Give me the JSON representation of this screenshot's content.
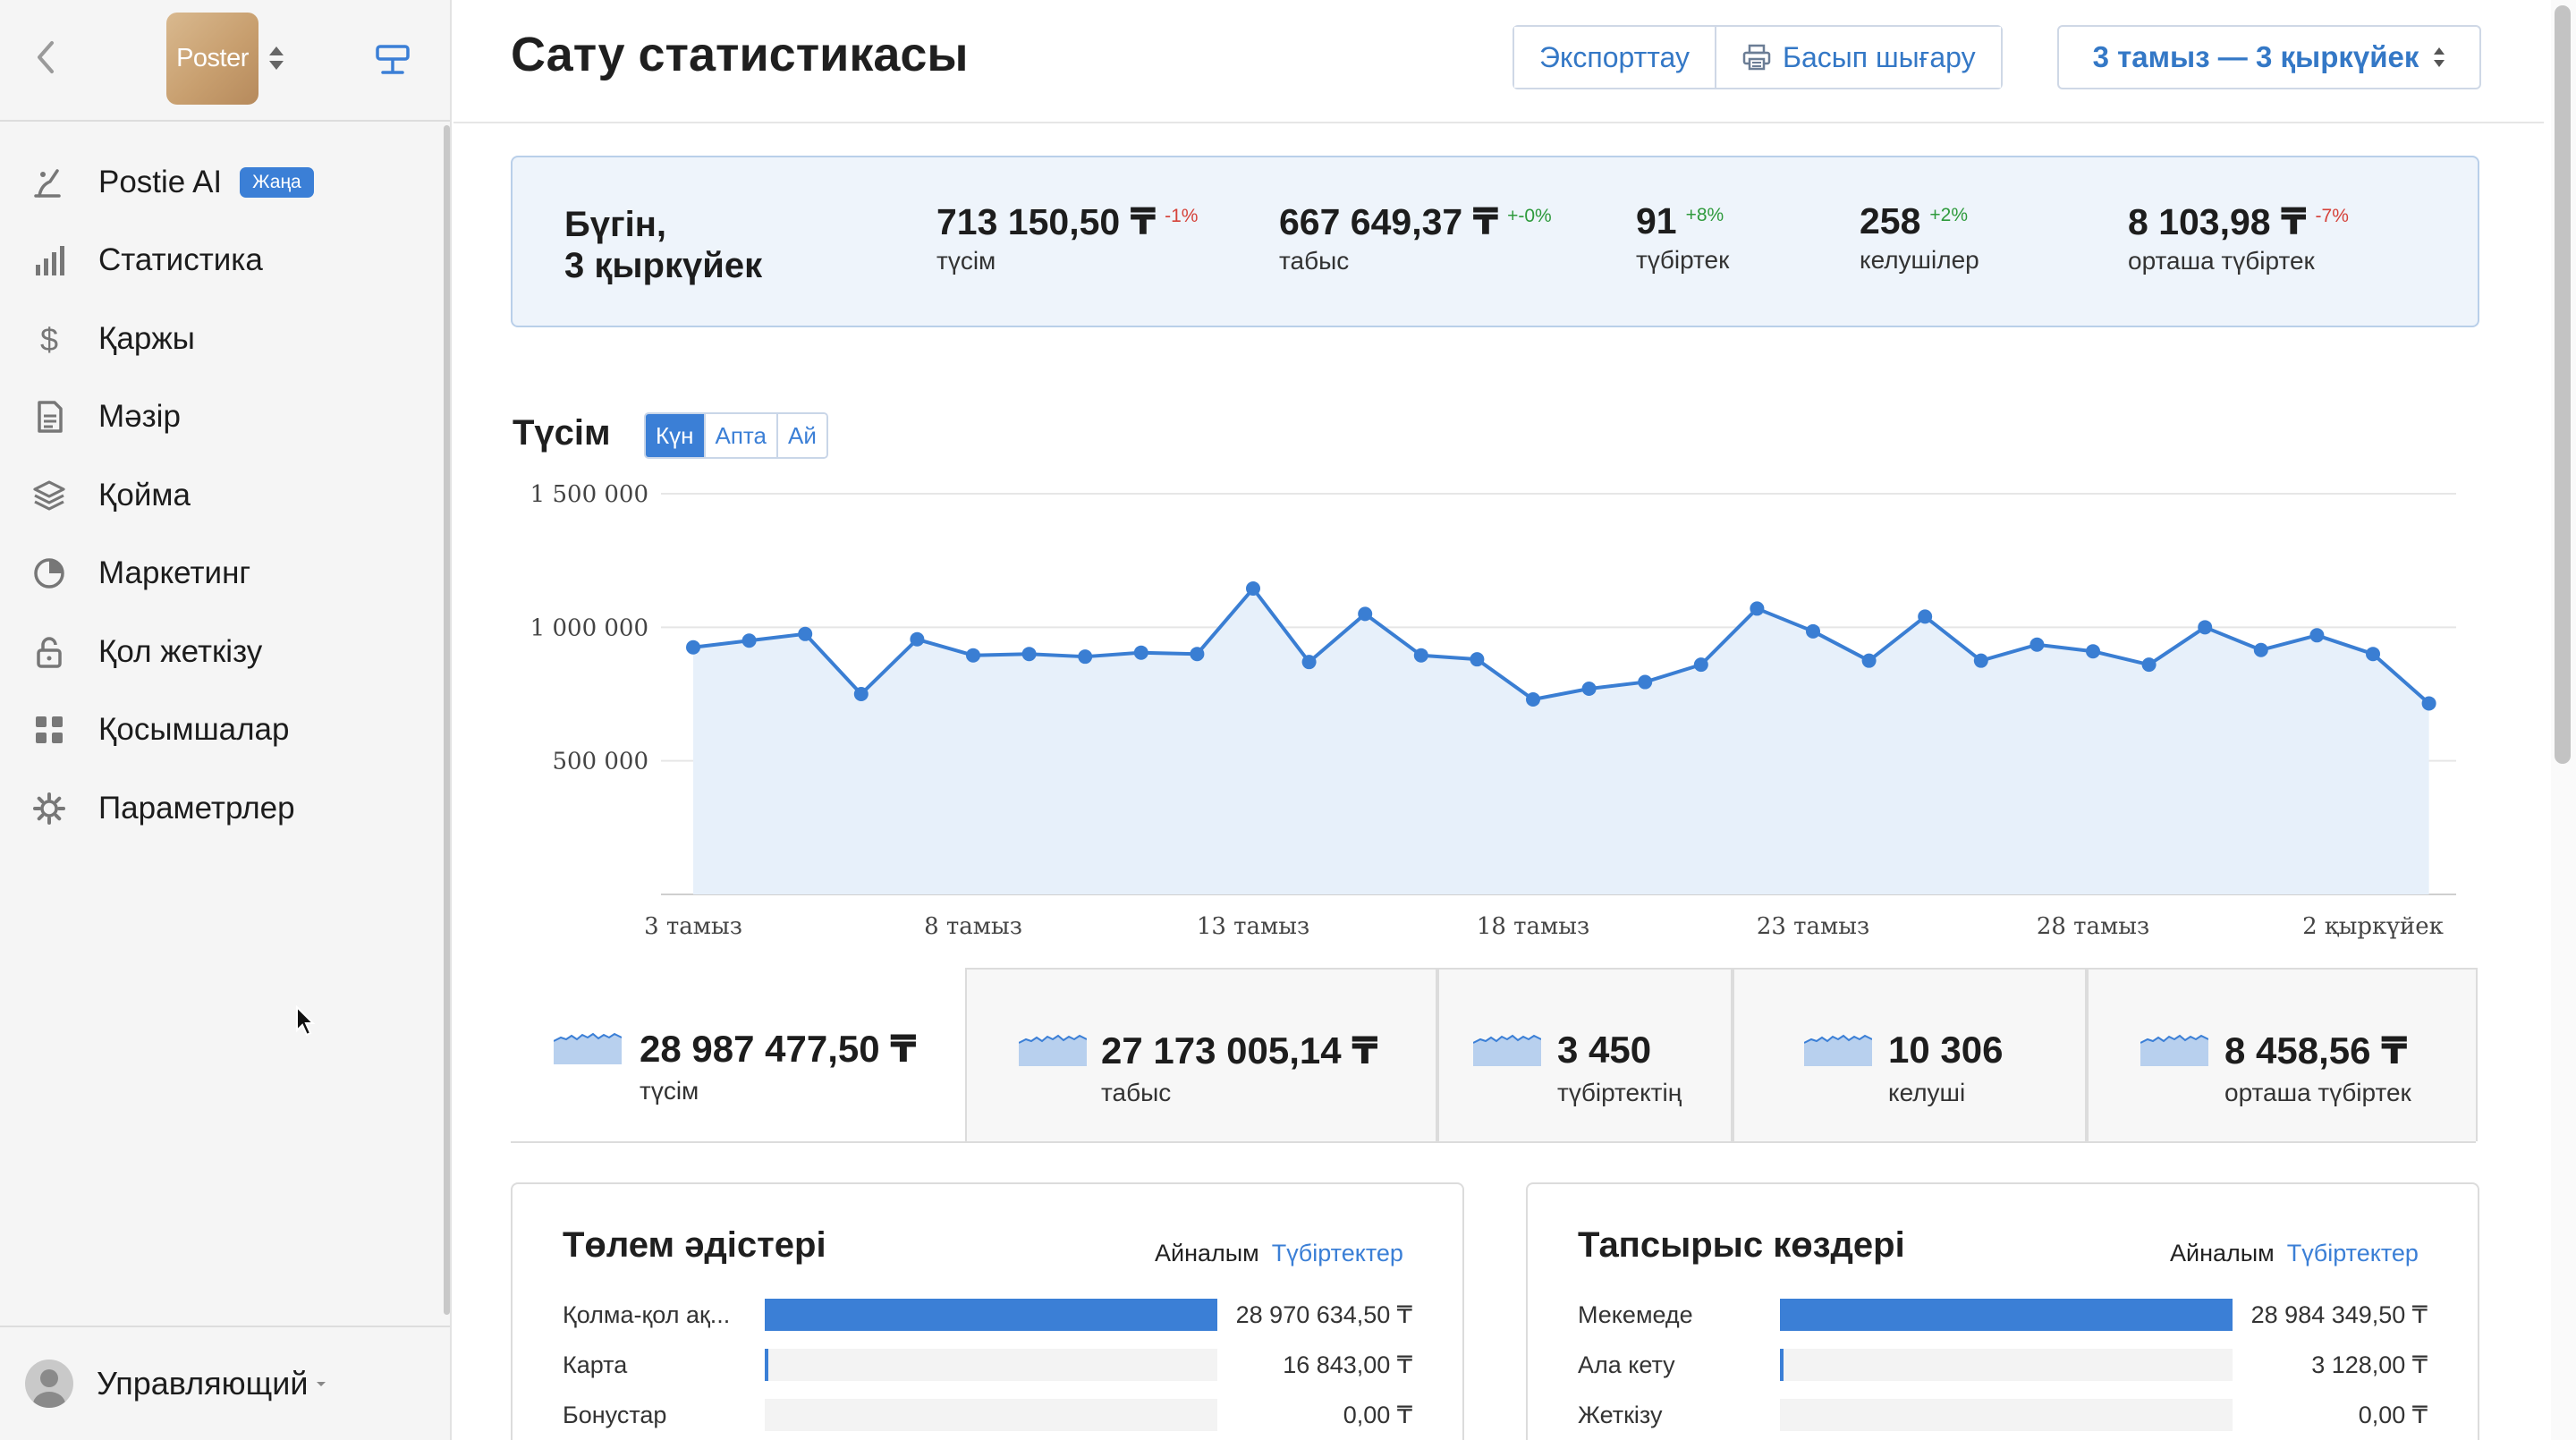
{
  "sidebar": {
    "logo_text": "Poster",
    "menu": [
      {
        "label": "Postie AI",
        "badge": "Жаңа",
        "icon": "ai-icon"
      },
      {
        "label": "Статистика",
        "icon": "statistics-icon"
      },
      {
        "label": "Қаржы",
        "icon": "finance-icon"
      },
      {
        "label": "Мәзір",
        "icon": "menu-icon"
      },
      {
        "label": "Қойма",
        "icon": "warehouse-icon"
      },
      {
        "label": "Маркетинг",
        "icon": "marketing-icon"
      },
      {
        "label": "Қол жеткізу",
        "icon": "access-icon"
      },
      {
        "label": "Қосымшалар",
        "icon": "apps-icon"
      },
      {
        "label": "Параметрлер",
        "icon": "settings-icon"
      }
    ],
    "user": "Управляющий"
  },
  "header": {
    "title": "Сату статистикасы",
    "export_label": "Экспорттау",
    "print_label": "Басып шығару",
    "date_range": "3 тамыз — 3 қыркүйек"
  },
  "today": {
    "label_line1": "Бүгін,",
    "label_line2": "3 қыркүйек",
    "stats": [
      {
        "value": "713 150,50 ₸",
        "delta": "-1%",
        "trend": "neg",
        "label": "түсім"
      },
      {
        "value": "667 649,37 ₸",
        "delta": "+-0%",
        "trend": "pos",
        "label": "табыс"
      },
      {
        "value": "91",
        "delta": "+8%",
        "trend": "pos",
        "label": "түбіртек"
      },
      {
        "value": "258",
        "delta": "+2%",
        "trend": "pos",
        "label": "келушілер"
      },
      {
        "value": "8 103,98 ₸",
        "delta": "-7%",
        "trend": "neg",
        "label": "орташа түбіртек"
      }
    ]
  },
  "chart_section": {
    "title": "Түсім",
    "tabs": [
      "Күн",
      "Апта",
      "Ай"
    ],
    "active_tab": "Күн"
  },
  "chart_data": {
    "type": "area",
    "x": [
      "3 тамыз",
      "4 тамыз",
      "5 тамыз",
      "6 тамыз",
      "7 тамыз",
      "8 тамыз",
      "9 тамыз",
      "10 тамыз",
      "11 тамыз",
      "12 тамыз",
      "13 тамыз",
      "14 тамыз",
      "15 тамыз",
      "16 тамыз",
      "17 тамыз",
      "18 тамыз",
      "19 тамыз",
      "20 тамыз",
      "21 тамыз",
      "22 тамыз",
      "23 тамыз",
      "24 тамыз",
      "25 тамыз",
      "26 тамыз",
      "27 тамыз",
      "28 тамыз",
      "29 тамыз",
      "30 тамыз",
      "31 тамыз",
      "1 қыркүйек",
      "2 қыркүйек",
      "3 қыркүйек"
    ],
    "values": [
      925000,
      950000,
      975000,
      750000,
      955000,
      895000,
      900000,
      890000,
      905000,
      900000,
      1145000,
      870000,
      1050000,
      895000,
      880000,
      730000,
      770000,
      795000,
      860000,
      1070000,
      985000,
      875000,
      1040000,
      875000,
      935000,
      910000,
      860000,
      1000000,
      915000,
      970000,
      900000,
      715000
    ],
    "x_tick_labels": [
      "3 тамыз",
      "8 тамыз",
      "13 тамыз",
      "18 тамыз",
      "23 тамыз",
      "28 тамыз",
      "2 қыркүйек"
    ],
    "y_tick_labels": [
      "500 000",
      "1 000 000",
      "1 500 000"
    ],
    "y_ticks": [
      500000,
      1000000,
      1500000
    ],
    "ylim": [
      0,
      1500000
    ],
    "grid": true,
    "series_color": "#3a7ed3"
  },
  "totals": [
    {
      "value": "28 987 477,50 ₸",
      "label": "түсім"
    },
    {
      "value": "27 173 005,14 ₸",
      "label": "табыс"
    },
    {
      "value": "3 450",
      "label": "түбіртектің"
    },
    {
      "value": "10 306",
      "label": "келуші"
    },
    {
      "value": "8 458,56 ₸",
      "label": "орташа түбіртек"
    }
  ],
  "payment_methods": {
    "title": "Төлем әдістері",
    "toggle_a": "Айналым",
    "toggle_b": "Түбіртектер",
    "rows": [
      {
        "name": "Қолма-қол ақ...",
        "value": "28 970 634,50 ₸",
        "fraction": 1.0
      },
      {
        "name": "Карта",
        "value": "16 843,00 ₸",
        "fraction": 0.006
      },
      {
        "name": "Бонустар",
        "value": "0,00 ₸",
        "fraction": 0.0
      }
    ]
  },
  "order_sources": {
    "title": "Тапсырыс көздері",
    "toggle_a": "Айналым",
    "toggle_b": "Түбіртектер",
    "rows": [
      {
        "name": "Мекемеде",
        "value": "28 984 349,50 ₸",
        "fraction": 1.0
      },
      {
        "name": "Ала кету",
        "value": "3 128,00 ₸",
        "fraction": 0.004
      },
      {
        "name": "Жеткізу",
        "value": "0,00 ₸",
        "fraction": 0.0
      }
    ]
  }
}
